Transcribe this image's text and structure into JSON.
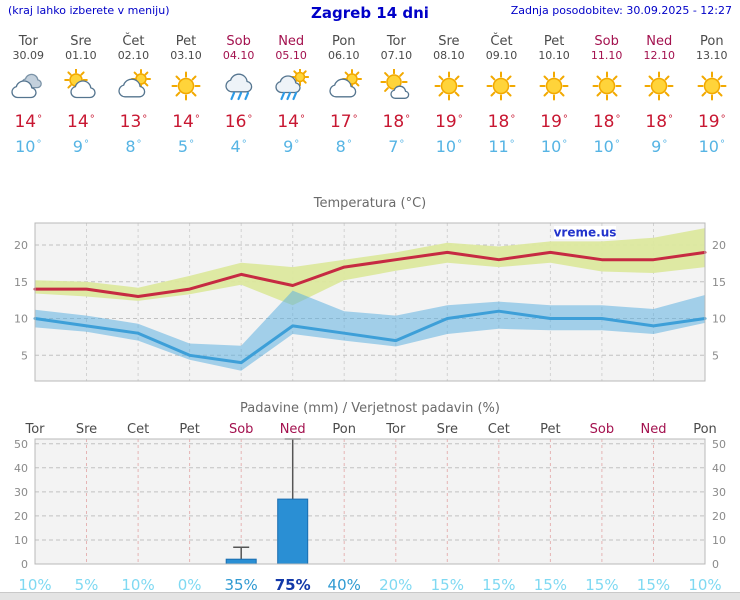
{
  "header": {
    "hint": "(kraj lahko izberete v meniju)",
    "title": "Zagreb 14 dni",
    "updated": "Zadnja posodobitev: 30.09.2025 - 12:27"
  },
  "units": {
    "degree": "°"
  },
  "colors": {
    "header_text": "#0000c8",
    "weekday_text": "#4a4a4a",
    "weekend_text": "#a3114e",
    "high_temp": "#c81732",
    "low_temp": "#56b4e4",
    "temp_max_line": "#c62a42",
    "temp_max_band": "#dce89e",
    "temp_min_line": "#3d9fd8",
    "temp_min_band": "#5fb0e0",
    "rain_bar": "#2a8fd4",
    "prob_low": "#7fd9f2",
    "prob_mid": "#2f9ad2",
    "prob_high": "#1238a8",
    "watermark": "#2233cc"
  },
  "days": [
    {
      "name": "Tor",
      "date": "30.09",
      "weekend": false,
      "icon": "cloudy",
      "high": "14",
      "low": "10"
    },
    {
      "name": "Sre",
      "date": "01.10",
      "weekend": false,
      "icon": "partly-cloudy",
      "high": "14",
      "low": "9"
    },
    {
      "name": "Čet",
      "date": "02.10",
      "weekend": false,
      "icon": "mostly-cloudy",
      "high": "13",
      "low": "8"
    },
    {
      "name": "Pet",
      "date": "03.10",
      "weekend": false,
      "icon": "sunny",
      "high": "14",
      "low": "5"
    },
    {
      "name": "Sob",
      "date": "04.10",
      "weekend": true,
      "icon": "rain",
      "high": "16",
      "low": "4"
    },
    {
      "name": "Ned",
      "date": "05.10",
      "weekend": true,
      "icon": "rain-sun",
      "high": "14",
      "low": "9"
    },
    {
      "name": "Pon",
      "date": "06.10",
      "weekend": false,
      "icon": "mostly-cloudy",
      "high": "17",
      "low": "8"
    },
    {
      "name": "Tor",
      "date": "07.10",
      "weekend": false,
      "icon": "mostly-sunny",
      "high": "18",
      "low": "7"
    },
    {
      "name": "Sre",
      "date": "08.10",
      "weekend": false,
      "icon": "sunny",
      "high": "19",
      "low": "10"
    },
    {
      "name": "Čet",
      "date": "09.10",
      "weekend": false,
      "icon": "sunny",
      "high": "18",
      "low": "11"
    },
    {
      "name": "Pet",
      "date": "10.10",
      "weekend": false,
      "icon": "sunny",
      "high": "19",
      "low": "10"
    },
    {
      "name": "Sob",
      "date": "11.10",
      "weekend": true,
      "icon": "sunny",
      "high": "18",
      "low": "10"
    },
    {
      "name": "Ned",
      "date": "12.10",
      "weekend": true,
      "icon": "sunny",
      "high": "18",
      "low": "9"
    },
    {
      "name": "Pon",
      "date": "13.10",
      "weekend": false,
      "icon": "sunny",
      "high": "19",
      "low": "10"
    }
  ],
  "chart_data": [
    {
      "type": "area",
      "title": "Temperatura (°C)",
      "x_labels": [
        "Tor",
        "Sre",
        "Čet",
        "Pet",
        "Sob",
        "Ned",
        "Pon",
        "Tor",
        "Sre",
        "Čet",
        "Pet",
        "Sob",
        "Ned",
        "Pon"
      ],
      "ylim": [
        1.5,
        23
      ],
      "yticks": [
        5,
        10,
        15,
        20
      ],
      "grid": true,
      "watermark": "vreme.us",
      "series": [
        {
          "name": "max-temp",
          "values": [
            14,
            14,
            13,
            14,
            16,
            14.5,
            17,
            18,
            19,
            18,
            19,
            18,
            18,
            19
          ]
        },
        {
          "name": "min-temp",
          "values": [
            10,
            9,
            8,
            5,
            4,
            9,
            8,
            7,
            10,
            11,
            10,
            10,
            9,
            10
          ]
        },
        {
          "name": "max-band-upper",
          "values": [
            15.2,
            15,
            14.2,
            15.8,
            17.6,
            17,
            18,
            19,
            20.3,
            19.8,
            20.5,
            20.5,
            21,
            22.3
          ]
        },
        {
          "name": "max-band-lower",
          "values": [
            13.4,
            13,
            12.4,
            13.3,
            14.6,
            11.8,
            15.2,
            16.5,
            17.6,
            17,
            17.6,
            16.4,
            16.2,
            17
          ]
        },
        {
          "name": "min-band-upper",
          "values": [
            11.2,
            10.4,
            9.3,
            6.6,
            6.3,
            13.8,
            11,
            10.4,
            11.8,
            12.3,
            11.8,
            11.8,
            11.3,
            13.2
          ]
        },
        {
          "name": "min-band-lower",
          "values": [
            8.8,
            8.2,
            7,
            4.4,
            2.9,
            7.9,
            7,
            6.2,
            7.9,
            8.6,
            8.4,
            8.4,
            7.9,
            9.4
          ]
        }
      ]
    },
    {
      "type": "bar",
      "title": "Padavine (mm) / Verjetnost padavin (%)",
      "categories": [
        "Tor",
        "Sre",
        "Čet",
        "Pet",
        "Sob",
        "Ned",
        "Pon",
        "Tor",
        "Sre",
        "Čet",
        "Pet",
        "Sob",
        "Ned",
        "Pon"
      ],
      "weekend_labels": [
        "Sob",
        "Ned"
      ],
      "values": [
        0,
        0,
        0,
        0,
        2,
        27,
        0,
        0,
        0,
        0,
        0,
        0,
        0,
        0
      ],
      "whisker_max": [
        null,
        null,
        null,
        null,
        7,
        52,
        null,
        null,
        null,
        null,
        null,
        null,
        null,
        null
      ],
      "probabilities": [
        "10%",
        "5%",
        "10%",
        "0%",
        "35%",
        "75%",
        "40%",
        "20%",
        "15%",
        "15%",
        "15%",
        "15%",
        "15%",
        "10%"
      ],
      "ylim": [
        0,
        52
      ],
      "yticks": [
        0,
        10,
        20,
        30,
        40,
        50
      ]
    }
  ]
}
